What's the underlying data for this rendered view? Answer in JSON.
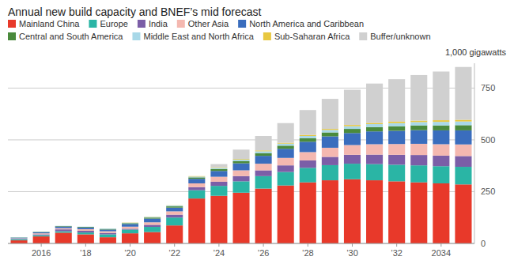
{
  "chart_data": {
    "type": "bar",
    "stacked": true,
    "title": "Annual new build capacity and BNEF’s mid forecast",
    "ylabel": "1,000 gigawatts",
    "categories": [
      null,
      "2016",
      null,
      "’18",
      null,
      "’20",
      null,
      "’22",
      null,
      "’24",
      null,
      "’26",
      null,
      "’28",
      null,
      "’30",
      null,
      "’32",
      null,
      "2034",
      null
    ],
    "series": [
      {
        "name": "Mainland China",
        "color": "#e8392a",
        "values": [
          15,
          34,
          52,
          44,
          30,
          49,
          55,
          87,
          217,
          230,
          245,
          265,
          280,
          295,
          305,
          310,
          305,
          300,
          295,
          290,
          285
        ]
      },
      {
        "name": "Europe",
        "color": "#2ab5a5",
        "values": [
          5,
          6,
          7,
          9,
          14,
          18,
          25,
          38,
          40,
          48,
          55,
          60,
          65,
          70,
          73,
          75,
          78,
          80,
          82,
          83,
          85
        ]
      },
      {
        "name": "India",
        "color": "#7b5ea7",
        "values": [
          2,
          4,
          9,
          8,
          7,
          4,
          10,
          14,
          15,
          20,
          25,
          28,
          32,
          36,
          40,
          43,
          46,
          48,
          50,
          51,
          52
        ]
      },
      {
        "name": "Other Asia",
        "color": "#f4b8b0",
        "values": [
          3,
          5,
          6,
          8,
          8,
          10,
          12,
          16,
          18,
          24,
          28,
          32,
          36,
          40,
          44,
          47,
          50,
          52,
          54,
          55,
          56
        ]
      },
      {
        "name": "North America and Caribbean",
        "color": "#3a6dbd",
        "values": [
          3,
          5,
          8,
          8,
          8,
          13,
          18,
          18,
          22,
          28,
          34,
          38,
          44,
          50,
          55,
          58,
          62,
          64,
          66,
          67,
          68
        ]
      },
      {
        "name": "Central and South America",
        "color": "#4a8a3c",
        "values": [
          1,
          2,
          2,
          3,
          3,
          4,
          5,
          6,
          7,
          9,
          11,
          13,
          15,
          17,
          19,
          20,
          21,
          22,
          23,
          24,
          25
        ]
      },
      {
        "name": "Middle East and North Africa",
        "color": "#a8d8e8",
        "values": [
          1,
          1,
          1,
          1,
          2,
          2,
          3,
          4,
          4,
          6,
          7,
          9,
          10,
          11,
          12,
          13,
          14,
          15,
          16,
          17,
          18
        ]
      },
      {
        "name": "Sub-Saharan Africa",
        "color": "#e8c840",
        "values": [
          0,
          0,
          0,
          0,
          0,
          1,
          1,
          1,
          2,
          3,
          3,
          4,
          4,
          5,
          5,
          6,
          6,
          7,
          7,
          8,
          8
        ]
      },
      {
        "name": "Buffer/unknown",
        "color": "#d0d0d0",
        "values": [
          0,
          0,
          0,
          0,
          0,
          0,
          0,
          0,
          0,
          15,
          45,
          70,
          95,
          120,
          145,
          170,
          190,
          205,
          220,
          235,
          255
        ]
      }
    ],
    "ylim": [
      0,
      870
    ],
    "yticks": [
      0,
      250,
      500,
      750
    ],
    "grid": true,
    "legend": "top-left"
  }
}
